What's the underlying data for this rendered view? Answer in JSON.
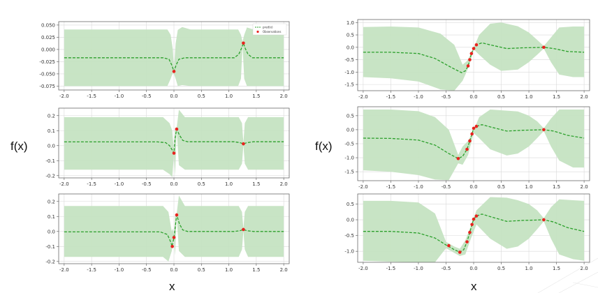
{
  "labels": {
    "ylabel_left": "f(x)",
    "ylabel_right": "f(x)",
    "xlabel_left": "x",
    "xlabel_right": "x"
  },
  "colors": {
    "band": "#c5e3c2",
    "mean": "#2ca02c",
    "obs": "#e8231f",
    "grid": "#d9d9d9",
    "frame": "#555555"
  },
  "chart_data": [
    {
      "type": "line",
      "panel": "left-1",
      "x_ticks": [
        "-2.0",
        "-1.5",
        "-1.0",
        "-0.5",
        "0.0",
        "0.5",
        "1.0",
        "1.5",
        "2.0"
      ],
      "y_ticks": [
        "0.050",
        "0.025",
        "0.000",
        "-0.025",
        "-0.050",
        "-0.075"
      ],
      "y_tick_values": [
        0.05,
        0.025,
        0,
        -0.025,
        -0.05,
        -0.075
      ],
      "xlim": [
        -2.1,
        2.1
      ],
      "ylim": [
        -0.083,
        0.057
      ],
      "legend": {
        "entries": [
          "pred(x)",
          "Observations"
        ],
        "placement": "top-right"
      },
      "mean": [
        [
          -2.0,
          -0.017
        ],
        [
          -0.2,
          -0.017
        ],
        [
          -0.09,
          -0.02
        ],
        [
          -0.04,
          -0.032
        ],
        [
          0.0,
          -0.045
        ],
        [
          0.04,
          -0.032
        ],
        [
          0.09,
          -0.02
        ],
        [
          0.2,
          -0.017
        ],
        [
          1.1,
          -0.017
        ],
        [
          1.18,
          -0.01
        ],
        [
          1.23,
          0.002
        ],
        [
          1.265,
          0.013
        ],
        [
          1.3,
          0.002
        ],
        [
          1.35,
          -0.01
        ],
        [
          1.43,
          -0.017
        ],
        [
          2.0,
          -0.017
        ]
      ],
      "band": [
        [
          -2.0,
          0.041,
          -0.075
        ],
        [
          -0.12,
          0.041,
          -0.075
        ],
        [
          -0.06,
          0.03,
          -0.06
        ],
        [
          -0.02,
          0.0,
          -0.048
        ],
        [
          0.0,
          -0.04,
          -0.05
        ],
        [
          0.03,
          0.012,
          -0.06
        ],
        [
          0.07,
          0.04,
          -0.075
        ],
        [
          0.15,
          0.046,
          -0.073
        ],
        [
          0.3,
          0.041,
          -0.075
        ],
        [
          1.17,
          0.041,
          -0.075
        ],
        [
          1.22,
          0.03,
          -0.06
        ],
        [
          1.25,
          0.016,
          0.008
        ],
        [
          1.28,
          0.03,
          -0.06
        ],
        [
          1.33,
          0.045,
          -0.075
        ],
        [
          1.45,
          0.041,
          -0.075
        ],
        [
          2.0,
          0.041,
          -0.075
        ]
      ],
      "observations": [
        [
          0.0,
          -0.045
        ],
        [
          1.265,
          0.013
        ]
      ]
    },
    {
      "type": "line",
      "panel": "left-2",
      "x_ticks": [
        "-2.0",
        "-1.5",
        "-1.0",
        "-0.5",
        "0.0",
        "0.5",
        "1.0",
        "1.5",
        "2.0"
      ],
      "y_ticks": [
        "0.2",
        "0.1",
        "0.0",
        "-0.1",
        "-0.2"
      ],
      "y_tick_values": [
        0.2,
        0.1,
        0,
        -0.1,
        -0.2
      ],
      "xlim": [
        -2.1,
        2.1
      ],
      "ylim": [
        -0.215,
        0.25
      ],
      "mean": [
        [
          -2.0,
          0.025
        ],
        [
          -0.3,
          0.025
        ],
        [
          -0.15,
          0.02
        ],
        [
          -0.08,
          0.0
        ],
        [
          -0.03,
          -0.03
        ],
        [
          0.0,
          -0.05
        ],
        [
          0.02,
          0.05
        ],
        [
          0.05,
          0.11
        ],
        [
          0.1,
          0.07
        ],
        [
          0.16,
          0.035
        ],
        [
          0.25,
          0.026
        ],
        [
          1.1,
          0.026
        ],
        [
          1.2,
          0.02
        ],
        [
          1.265,
          0.012
        ],
        [
          1.33,
          0.02
        ],
        [
          1.45,
          0.026
        ],
        [
          2.0,
          0.026
        ]
      ],
      "band": [
        [
          -2.0,
          0.19,
          -0.16
        ],
        [
          -0.2,
          0.19,
          -0.16
        ],
        [
          -0.08,
          0.15,
          -0.19
        ],
        [
          -0.03,
          0.1,
          -0.21
        ],
        [
          0.0,
          -0.04,
          -0.06
        ],
        [
          0.02,
          0.12,
          -0.2
        ],
        [
          0.05,
          0.12,
          0.1
        ],
        [
          0.09,
          0.24,
          -0.13
        ],
        [
          0.2,
          0.19,
          -0.16
        ],
        [
          1.18,
          0.19,
          -0.16
        ],
        [
          1.24,
          0.15,
          -0.12
        ],
        [
          1.265,
          0.02,
          0.005
        ],
        [
          1.29,
          0.15,
          -0.12
        ],
        [
          1.35,
          0.19,
          -0.16
        ],
        [
          2.0,
          0.19,
          -0.16
        ]
      ],
      "observations": [
        [
          0.0,
          -0.05
        ],
        [
          0.05,
          0.11
        ],
        [
          1.265,
          0.012
        ]
      ]
    },
    {
      "type": "line",
      "panel": "left-3",
      "x_ticks": [
        "-2.0",
        "-1.5",
        "-1.0",
        "-0.5",
        "0.0",
        "0.5",
        "1.0",
        "1.5",
        "2.0"
      ],
      "y_ticks": [
        "0.2",
        "0.1",
        "0.0",
        "-0.1",
        "-0.2"
      ],
      "y_tick_values": [
        0.2,
        0.1,
        0,
        -0.1,
        -0.2
      ],
      "xlim": [
        -2.1,
        2.1
      ],
      "ylim": [
        -0.215,
        0.25
      ],
      "mean": [
        [
          -2.0,
          -0.003
        ],
        [
          -0.25,
          -0.003
        ],
        [
          -0.12,
          -0.02
        ],
        [
          -0.06,
          -0.07
        ],
        [
          -0.03,
          -0.1
        ],
        [
          0.0,
          -0.04
        ],
        [
          0.02,
          0.02
        ],
        [
          0.05,
          0.11
        ],
        [
          0.1,
          0.05
        ],
        [
          0.16,
          0.01
        ],
        [
          0.25,
          0.0
        ],
        [
          1.1,
          0.0
        ],
        [
          1.2,
          0.005
        ],
        [
          1.265,
          0.013
        ],
        [
          1.33,
          0.005
        ],
        [
          1.45,
          0.0
        ],
        [
          2.0,
          0.0
        ]
      ],
      "band": [
        [
          -2.0,
          0.17,
          -0.17
        ],
        [
          -0.2,
          0.17,
          -0.17
        ],
        [
          -0.1,
          0.13,
          -0.2
        ],
        [
          -0.04,
          0.0,
          -0.13
        ],
        [
          -0.02,
          0.02,
          -0.08
        ],
        [
          0.0,
          -0.03,
          -0.05
        ],
        [
          0.02,
          0.1,
          -0.16
        ],
        [
          0.05,
          0.12,
          0.1
        ],
        [
          0.09,
          0.24,
          -0.13
        ],
        [
          0.2,
          0.17,
          -0.17
        ],
        [
          1.18,
          0.17,
          -0.17
        ],
        [
          1.24,
          0.13,
          -0.12
        ],
        [
          1.265,
          0.02,
          0.005
        ],
        [
          1.29,
          0.13,
          -0.12
        ],
        [
          1.35,
          0.17,
          -0.17
        ],
        [
          2.0,
          0.17,
          -0.17
        ]
      ],
      "observations": [
        [
          -0.03,
          -0.1
        ],
        [
          0.0,
          -0.04
        ],
        [
          0.05,
          0.11
        ],
        [
          1.265,
          0.013
        ]
      ]
    },
    {
      "type": "line",
      "panel": "right-1",
      "x_ticks": [
        "-2.0",
        "-1.5",
        "-1.0",
        "-0.5",
        "0.0",
        "0.5",
        "1.0",
        "1.5",
        "2.0"
      ],
      "y_ticks": [
        "1.0",
        "0.5",
        "0.0",
        "-0.5",
        "-1.0",
        "-1.5"
      ],
      "y_tick_values": [
        1,
        0.5,
        0,
        -0.5,
        -1,
        -1.5
      ],
      "xlim": [
        -2.1,
        2.1
      ],
      "ylim": [
        -1.75,
        1.12
      ],
      "mean": [
        [
          -2.0,
          -0.2
        ],
        [
          -1.5,
          -0.2
        ],
        [
          -1.0,
          -0.25
        ],
        [
          -0.7,
          -0.45
        ],
        [
          -0.4,
          -0.82
        ],
        [
          -0.22,
          -1.02
        ],
        [
          -0.15,
          -0.95
        ],
        [
          -0.1,
          -0.75
        ],
        [
          -0.07,
          -0.5
        ],
        [
          -0.04,
          -0.25
        ],
        [
          0.0,
          -0.05
        ],
        [
          0.05,
          0.1
        ],
        [
          0.15,
          0.18
        ],
        [
          0.3,
          0.1
        ],
        [
          0.6,
          -0.05
        ],
        [
          0.9,
          -0.02
        ],
        [
          1.1,
          -0.01
        ],
        [
          1.27,
          0.0
        ],
        [
          1.45,
          -0.05
        ],
        [
          1.7,
          -0.17
        ],
        [
          2.0,
          -0.2
        ]
      ],
      "band": [
        [
          -2.0,
          0.82,
          -1.2
        ],
        [
          -1.5,
          0.84,
          -1.25
        ],
        [
          -1.0,
          0.8,
          -1.38
        ],
        [
          -0.6,
          0.55,
          -1.7
        ],
        [
          -0.35,
          0.1,
          -1.75
        ],
        [
          -0.2,
          -0.7,
          -1.35
        ],
        [
          -0.12,
          -0.55,
          -0.95
        ],
        [
          -0.07,
          -0.35,
          -0.65
        ],
        [
          0.0,
          -0.02,
          -0.08
        ],
        [
          0.1,
          0.5,
          -0.3
        ],
        [
          0.3,
          0.95,
          -0.7
        ],
        [
          0.5,
          1.0,
          -0.95
        ],
        [
          0.8,
          0.85,
          -0.9
        ],
        [
          1.0,
          0.6,
          -0.6
        ],
        [
          1.15,
          0.3,
          -0.3
        ],
        [
          1.27,
          0.05,
          -0.05
        ],
        [
          1.4,
          0.4,
          -0.6
        ],
        [
          1.55,
          0.8,
          -1.1
        ],
        [
          1.8,
          0.84,
          -1.2
        ],
        [
          2.0,
          0.84,
          -1.2
        ]
      ],
      "observations": [
        [
          -0.1,
          -0.75
        ],
        [
          -0.07,
          -0.5
        ],
        [
          -0.04,
          -0.25
        ],
        [
          0.0,
          -0.05
        ],
        [
          0.05,
          0.1
        ],
        [
          1.27,
          0.0
        ]
      ]
    },
    {
      "type": "line",
      "panel": "right-2",
      "x_ticks": [
        "-2.0",
        "-1.5",
        "-1.0",
        "-0.5",
        "0.0",
        "0.5",
        "1.0",
        "1.5",
        "2.0"
      ],
      "y_ticks": [
        "0.5",
        "0.0",
        "-0.5",
        "-1.0",
        "-1.5"
      ],
      "y_tick_values": [
        0.5,
        0,
        -0.5,
        -1,
        -1.5
      ],
      "xlim": [
        -2.1,
        2.1
      ],
      "ylim": [
        -1.82,
        0.82
      ],
      "mean": [
        [
          -2.0,
          -0.3
        ],
        [
          -1.5,
          -0.31
        ],
        [
          -1.0,
          -0.37
        ],
        [
          -0.7,
          -0.55
        ],
        [
          -0.45,
          -0.85
        ],
        [
          -0.28,
          -1.03
        ],
        [
          -0.2,
          -0.95
        ],
        [
          -0.12,
          -0.7
        ],
        [
          -0.07,
          -0.4
        ],
        [
          -0.03,
          -0.15
        ],
        [
          0.0,
          0.05
        ],
        [
          0.05,
          0.12
        ],
        [
          0.15,
          0.18
        ],
        [
          0.3,
          0.1
        ],
        [
          0.6,
          -0.05
        ],
        [
          0.9,
          -0.02
        ],
        [
          1.1,
          -0.01
        ],
        [
          1.27,
          0.0
        ],
        [
          1.45,
          -0.05
        ],
        [
          1.7,
          -0.2
        ],
        [
          2.0,
          -0.3
        ]
      ],
      "band": [
        [
          -2.0,
          0.72,
          -1.45
        ],
        [
          -1.5,
          0.72,
          -1.5
        ],
        [
          -1.0,
          0.66,
          -1.62
        ],
        [
          -0.7,
          0.45,
          -1.78
        ],
        [
          -0.45,
          0.0,
          -1.8
        ],
        [
          -0.28,
          -0.9,
          -1.2
        ],
        [
          -0.2,
          -0.6,
          -1.25
        ],
        [
          -0.1,
          -0.4,
          -0.9
        ],
        [
          0.0,
          -0.02,
          -0.12
        ],
        [
          0.1,
          0.45,
          -0.3
        ],
        [
          0.3,
          0.72,
          -0.7
        ],
        [
          0.6,
          0.68,
          -0.92
        ],
        [
          0.8,
          0.65,
          -0.85
        ],
        [
          1.0,
          0.5,
          -0.6
        ],
        [
          1.15,
          0.3,
          -0.3
        ],
        [
          1.27,
          0.05,
          -0.05
        ],
        [
          1.4,
          0.4,
          -0.6
        ],
        [
          1.55,
          0.72,
          -1.1
        ],
        [
          1.8,
          0.72,
          -1.35
        ],
        [
          2.0,
          0.72,
          -1.35
        ]
      ],
      "observations": [
        [
          -0.28,
          -1.03
        ],
        [
          -0.12,
          -0.7
        ],
        [
          -0.07,
          -0.4
        ],
        [
          -0.03,
          -0.15
        ],
        [
          0.0,
          0.05
        ],
        [
          0.05,
          0.12
        ],
        [
          1.27,
          0.0
        ]
      ]
    },
    {
      "type": "line",
      "panel": "right-3",
      "x_ticks": [
        "-2.0",
        "-1.5",
        "-1.0",
        "-0.5",
        "0.0",
        "0.5",
        "1.0",
        "1.5",
        "2.0"
      ],
      "y_ticks": [
        "0.5",
        "0.0",
        "-0.5",
        "-1.0"
      ],
      "y_tick_values": [
        0.5,
        0,
        -0.5,
        -1
      ],
      "xlim": [
        -2.1,
        2.1
      ],
      "ylim": [
        -1.35,
        0.82
      ],
      "mean": [
        [
          -2.0,
          -0.37
        ],
        [
          -1.5,
          -0.37
        ],
        [
          -1.0,
          -0.42
        ],
        [
          -0.7,
          -0.58
        ],
        [
          -0.5,
          -0.8
        ],
        [
          -0.35,
          -0.95
        ],
        [
          -0.25,
          -1.03
        ],
        [
          -0.18,
          -0.95
        ],
        [
          -0.12,
          -0.7
        ],
        [
          -0.07,
          -0.4
        ],
        [
          -0.03,
          -0.15
        ],
        [
          0.0,
          0.02
        ],
        [
          0.05,
          0.12
        ],
        [
          0.15,
          0.18
        ],
        [
          0.3,
          0.1
        ],
        [
          0.6,
          -0.05
        ],
        [
          0.9,
          -0.02
        ],
        [
          1.1,
          -0.01
        ],
        [
          1.27,
          0.0
        ],
        [
          1.45,
          -0.07
        ],
        [
          1.7,
          -0.25
        ],
        [
          2.0,
          -0.37
        ]
      ],
      "band": [
        [
          -2.0,
          0.6,
          -1.3
        ],
        [
          -1.5,
          0.6,
          -1.33
        ],
        [
          -1.0,
          0.55,
          -1.35
        ],
        [
          -0.7,
          0.2,
          -1.35
        ],
        [
          -0.5,
          -0.7,
          -0.9
        ],
        [
          -0.35,
          -0.85,
          -1.05
        ],
        [
          -0.25,
          -0.92,
          -1.15
        ],
        [
          -0.15,
          -0.65,
          -1.1
        ],
        [
          -0.05,
          -0.2,
          -0.6
        ],
        [
          0.05,
          0.3,
          -0.15
        ],
        [
          0.3,
          0.72,
          -0.6
        ],
        [
          0.6,
          0.7,
          -0.92
        ],
        [
          0.8,
          0.62,
          -0.85
        ],
        [
          1.0,
          0.5,
          -0.6
        ],
        [
          1.15,
          0.3,
          -0.3
        ],
        [
          1.27,
          0.05,
          -0.05
        ],
        [
          1.4,
          0.4,
          -0.6
        ],
        [
          1.55,
          0.65,
          -1.1
        ],
        [
          1.8,
          0.62,
          -1.25
        ],
        [
          2.0,
          0.6,
          -1.3
        ]
      ],
      "observations": [
        [
          -0.45,
          -0.82
        ],
        [
          -0.25,
          -1.03
        ],
        [
          -0.12,
          -0.7
        ],
        [
          -0.07,
          -0.4
        ],
        [
          -0.03,
          -0.15
        ],
        [
          0.0,
          0.02
        ],
        [
          0.05,
          0.12
        ],
        [
          1.27,
          0.0
        ]
      ]
    }
  ]
}
